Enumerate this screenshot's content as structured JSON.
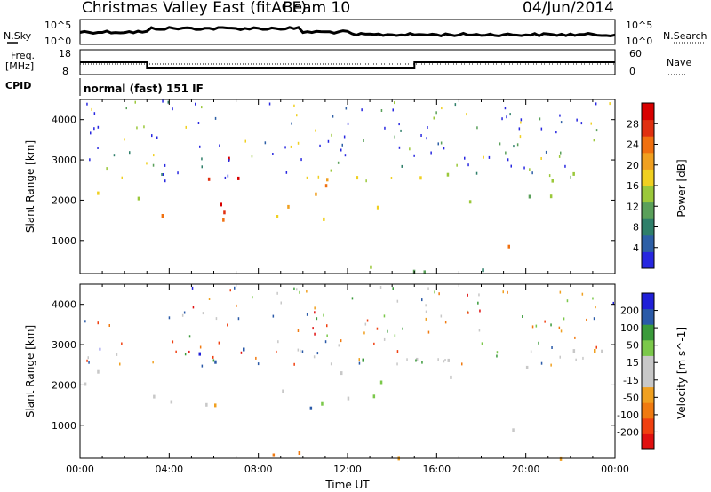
{
  "header": {
    "title": "Christmas Valley East (fitACF)",
    "beam": "Beam 10",
    "date": "04/Jun/2014"
  },
  "status_panels": {
    "nsky_label": "N.Sky",
    "nsearch_label": "N.Search",
    "nsky_ticks": [
      "10^5",
      "10^0"
    ],
    "nsearch_ticks": [
      "10^5",
      "10^0"
    ],
    "freq_label": "Freq.",
    "freq_unit": "[MHz]",
    "freq_ticks": [
      "18",
      "8"
    ],
    "nave_label": "Nave",
    "nave_ticks": [
      "60",
      "0"
    ],
    "cpid_label": "CPID",
    "cpid_text": "normal (fast) 151 IF"
  },
  "colors": {
    "power_scale": [
      "#2727e0",
      "#2d5fa6",
      "#2f7f6a",
      "#5aa05a",
      "#9bc83a",
      "#f0d020",
      "#f0a020",
      "#f07010",
      "#e03010",
      "#d80000"
    ],
    "velocity_scale": [
      "#e01010",
      "#f04010",
      "#f07a10",
      "#f0a020",
      "#c8c8c8",
      "#c8c8c8",
      "#7bc84a",
      "#3a9a3a",
      "#2a5aa8",
      "#2020d8"
    ]
  },
  "chart_data": [
    {
      "type": "heatmap",
      "name": "power",
      "x_axis": {
        "label": "Time UT",
        "range_hours": [
          0,
          24
        ],
        "ticks": [
          "00:00",
          "04:00",
          "08:00",
          "12:00",
          "16:00",
          "20:00",
          "00:00"
        ]
      },
      "y_axis": {
        "label": "Slant Range [km]",
        "range": [
          180,
          4500
        ],
        "ticks": [
          1000,
          2000,
          3000,
          4000
        ]
      },
      "colorbar": {
        "label": "Power [dB]",
        "range": [
          0,
          32
        ],
        "ticks": [
          "4",
          "8",
          "12",
          "16",
          "20",
          "24",
          "28"
        ]
      }
    },
    {
      "type": "heatmap",
      "name": "velocity",
      "x_axis": {
        "label": "Time UT",
        "range_hours": [
          0,
          24
        ],
        "ticks": [
          "00:00",
          "04:00",
          "08:00",
          "12:00",
          "16:00",
          "20:00",
          "00:00"
        ]
      },
      "y_axis": {
        "label": "Slant Range [km]",
        "range": [
          180,
          4500
        ],
        "ticks": [
          1000,
          2000,
          3000,
          4000
        ]
      },
      "colorbar": {
        "label": "Velocity [m s^-1]",
        "range": [
          -250,
          250
        ],
        "ticks": [
          "200",
          "100",
          "50",
          "15",
          "-15",
          "-50",
          "-100",
          "-200"
        ]
      }
    },
    {
      "type": "line",
      "name": "frequency",
      "ylabel": "Freq. [MHz]",
      "ylim": [
        8,
        18
      ],
      "x": [
        0,
        3,
        3,
        15,
        15,
        24
      ],
      "values": [
        13,
        13,
        10.5,
        10.5,
        13,
        13
      ]
    }
  ]
}
